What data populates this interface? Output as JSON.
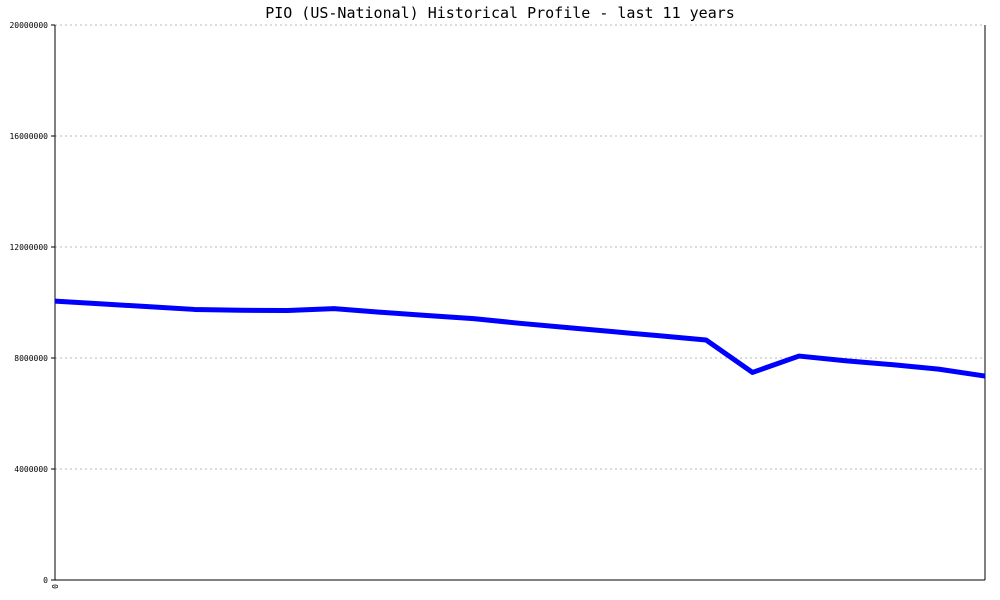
{
  "chart_data": {
    "type": "line",
    "title": "PIO (US-National) Historical Profile - last 11 years",
    "xlabel": "",
    "ylabel": "",
    "ylim": [
      0,
      20000000
    ],
    "yticks": [
      "0",
      "4000000",
      "8000000",
      "12000000",
      "16000000",
      "20000000"
    ],
    "xticks": [
      "0"
    ],
    "grid": true,
    "series": [
      {
        "color": "#0000ff",
        "values": [
          10050000,
          9950000,
          9850000,
          9750000,
          9720000,
          9710000,
          9780000,
          9650000,
          9530000,
          9420000,
          9250000,
          9100000,
          8950000,
          8800000,
          8650000,
          7480000,
          8070000,
          7900000,
          7760000,
          7600000,
          7350000
        ]
      }
    ]
  }
}
